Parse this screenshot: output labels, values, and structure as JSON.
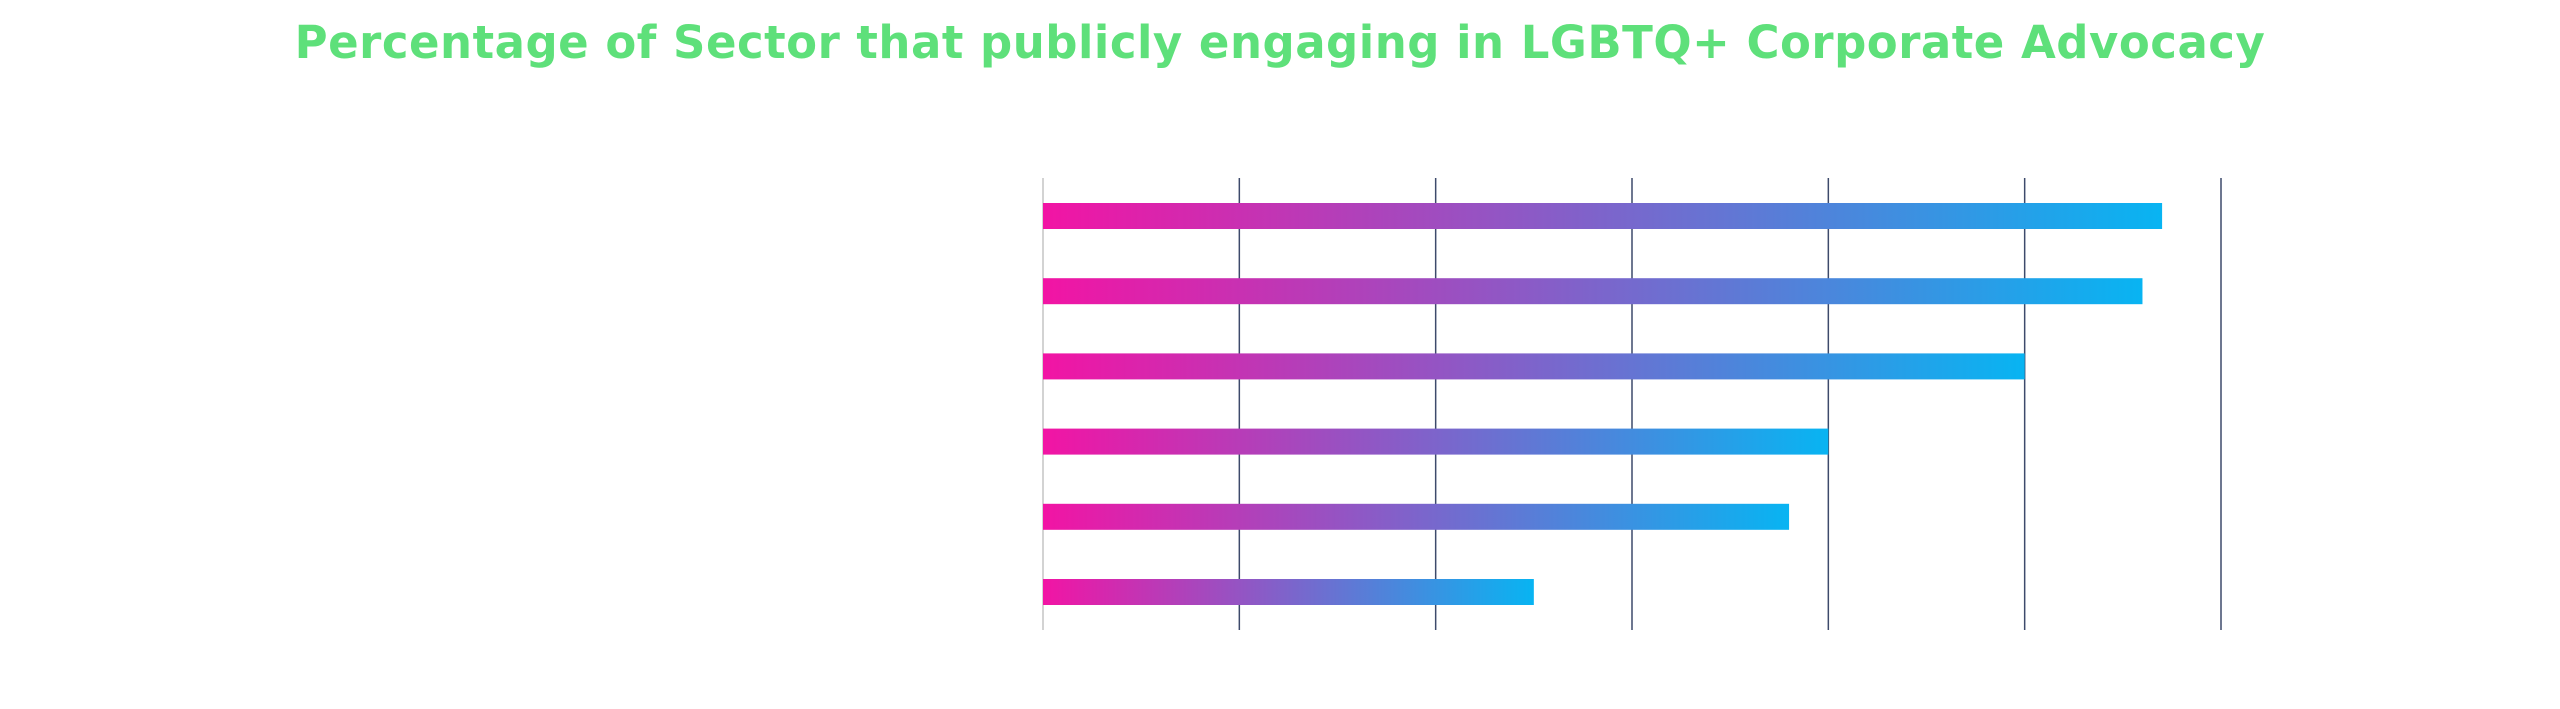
{
  "chart_data": {
    "type": "bar",
    "orientation": "horizontal",
    "title": "Percentage of Sector that publicly engaging in LGBTQ+ Corporate Advocacy",
    "xlabel": "",
    "ylabel": "",
    "categories": [
      "",
      "",
      "",
      "",
      "",
      ""
    ],
    "values": [
      57,
      56,
      50,
      40,
      38,
      25
    ],
    "xlim": [
      0,
      60
    ],
    "x_ticks": [
      0,
      10,
      20,
      30,
      40,
      50,
      60
    ],
    "grid": true,
    "legend": "none"
  },
  "colors": {
    "title": "#5ee07a",
    "bar_start": "#f214a4",
    "bar_end": "#08b4f2",
    "grid": "#3d4a6b",
    "axis": "#d3d3d3"
  }
}
